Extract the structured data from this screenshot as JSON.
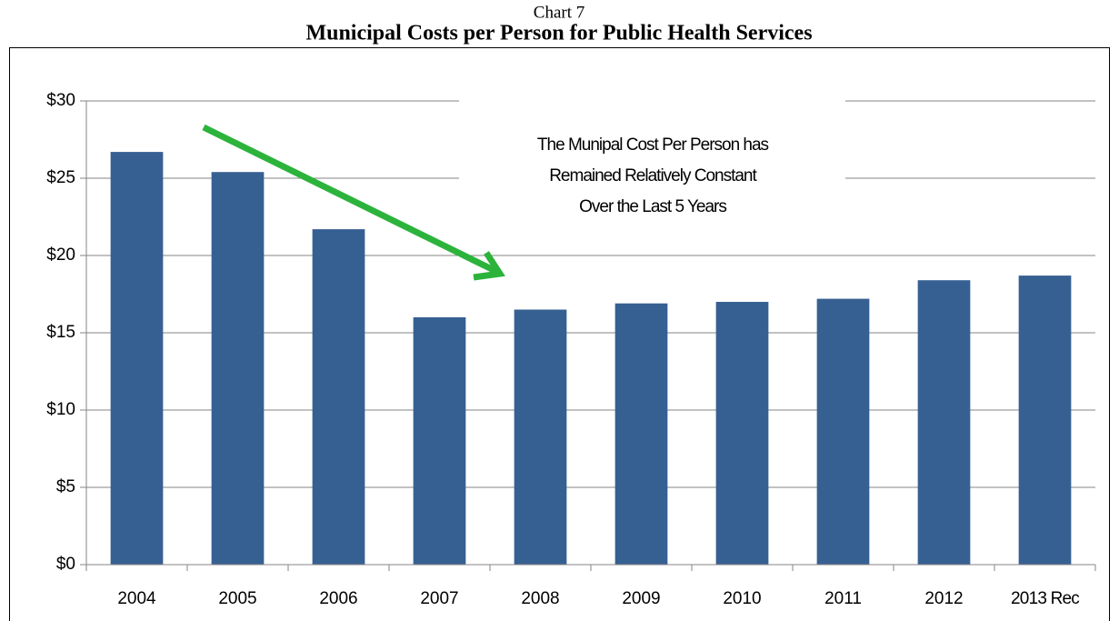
{
  "chart_data": {
    "type": "bar",
    "subtitle": "Chart 7",
    "title": "Municipal Costs per Person for Public Health Services",
    "annotation": [
      "The Munipal Cost Per Person has",
      "Remained Relatively Constant",
      "Over the Last 5 Years"
    ],
    "categories": [
      "2004",
      "2005",
      "2006",
      "2007",
      "2008",
      "2009",
      "2010",
      "2011",
      "2012",
      "2013 Rec"
    ],
    "values": [
      26.7,
      25.4,
      21.7,
      16.0,
      16.5,
      16.9,
      17.0,
      17.2,
      18.4,
      18.7
    ],
    "color": "#376092",
    "ylim": [
      0,
      30
    ],
    "yticks": [
      {
        "value": 0,
        "label": "$0"
      },
      {
        "value": 5,
        "label": "$5"
      },
      {
        "value": 10,
        "label": "$10"
      },
      {
        "value": 15,
        "label": "$15"
      },
      {
        "value": 20,
        "label": "$20"
      },
      {
        "value": 25,
        "label": "$25"
      },
      {
        "value": 30,
        "label": "$30"
      }
    ],
    "grid": true
  }
}
